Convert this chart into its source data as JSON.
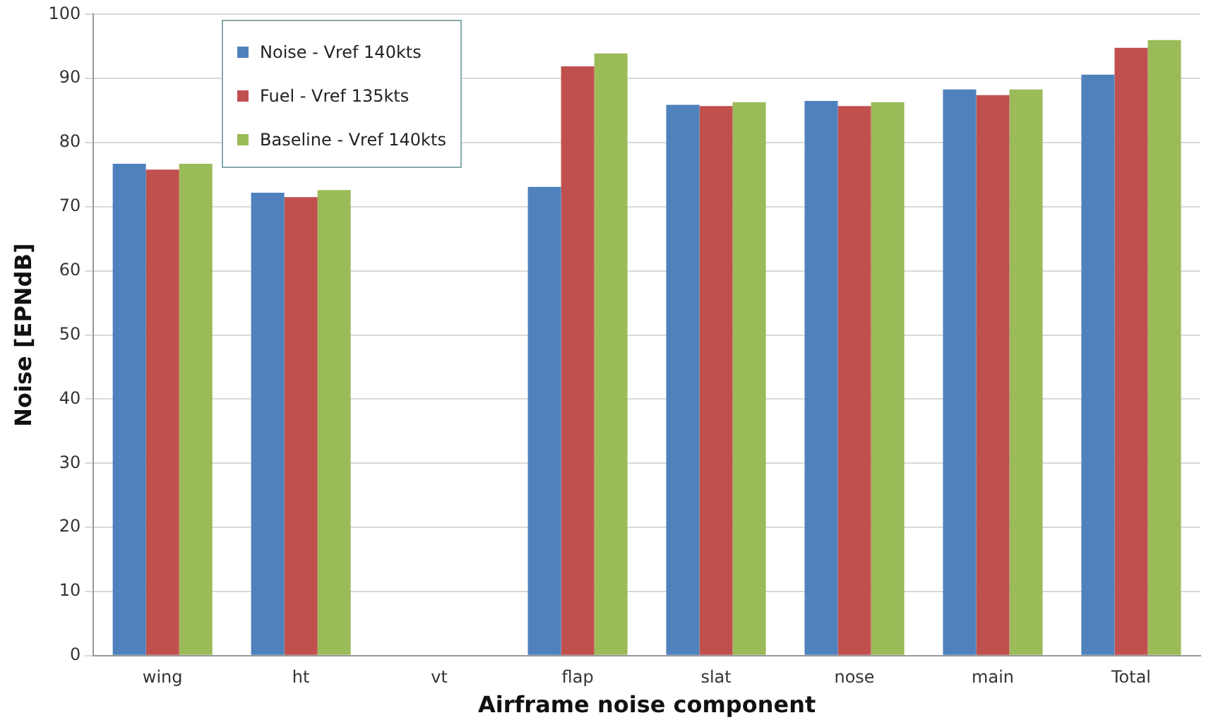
{
  "chart_data": {
    "type": "bar",
    "xlabel": "Airframe noise component",
    "ylabel": "Noise [EPNdB]",
    "categories": [
      "wing",
      "ht",
      "vt",
      "flap",
      "slat",
      "nose",
      "main",
      "Total"
    ],
    "series": [
      {
        "name": "Noise - Vref 140kts",
        "color": "#4f81bd",
        "values": [
          76.7,
          72.2,
          null,
          73.1,
          85.9,
          86.5,
          88.3,
          90.6
        ]
      },
      {
        "name": "Fuel - Vref 135kts",
        "color": "#c0504d",
        "values": [
          75.8,
          71.5,
          null,
          91.9,
          85.7,
          85.7,
          87.4,
          94.8
        ]
      },
      {
        "name": "Baseline - Vref 140kts",
        "color": "#9bbb59",
        "values": [
          76.7,
          72.6,
          null,
          93.9,
          86.3,
          86.3,
          88.3,
          96.0
        ]
      }
    ],
    "ylim": [
      0,
      100
    ],
    "yticks": [
      0,
      10,
      20,
      30,
      40,
      50,
      60,
      70,
      80,
      90,
      100
    ],
    "grid": "y",
    "legend": "top left"
  }
}
